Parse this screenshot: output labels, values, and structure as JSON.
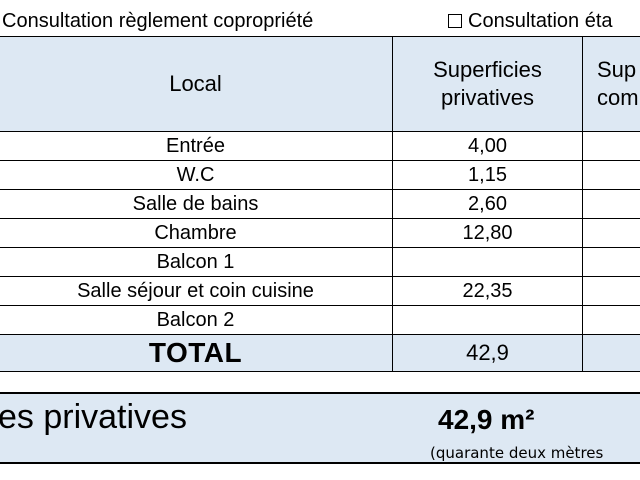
{
  "header_options": {
    "left_label": "Consultation règlement copropriété",
    "right_label": "Consultation éta"
  },
  "table": {
    "columns": [
      "Local",
      "Superficies privatives",
      "Sup com"
    ],
    "rows": [
      {
        "local": "Entrée",
        "superficie": "4,00",
        "other": ""
      },
      {
        "local": "W.C",
        "superficie": "1,15",
        "other": ""
      },
      {
        "local": "Salle de bains",
        "superficie": "2,60",
        "other": ""
      },
      {
        "local": "Chambre",
        "superficie": "12,80",
        "other": ""
      },
      {
        "local": "Balcon 1",
        "superficie": "",
        "other": ""
      },
      {
        "local": "Salle séjour et coin cuisine",
        "superficie": "22,35",
        "other": ""
      },
      {
        "local": "Balcon 2",
        "superficie": "",
        "other": ""
      }
    ],
    "total": {
      "label": "TOTAL",
      "superficie": "42,9",
      "other": ""
    }
  },
  "summary": {
    "label": "es privatives",
    "value": "42,9 m²",
    "in_words": "(quarante deux mètres"
  }
}
